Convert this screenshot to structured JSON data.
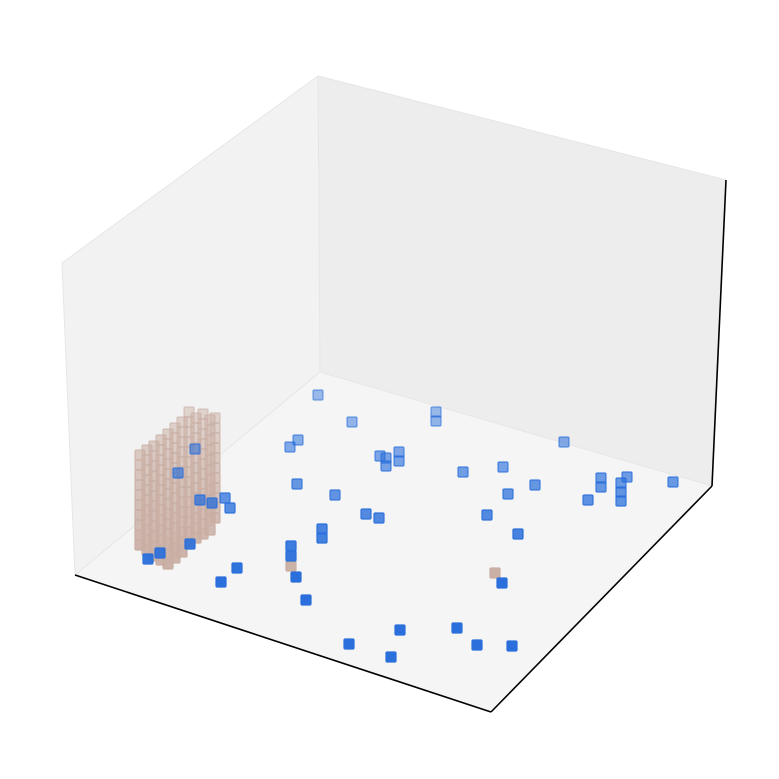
{
  "chart_data": {
    "type": "scatter",
    "projection": "3d",
    "axes_visible": false,
    "grid": false,
    "pane_colors": {
      "left": "#f2f2f2",
      "back": "#ededed",
      "floor": "#f5f5f5"
    },
    "series": [
      {
        "color": "#c9aea3",
        "marker": "square",
        "points_xy": [
          [
            140,
            455
          ],
          [
            140,
            465
          ],
          [
            140,
            475
          ],
          [
            140,
            485
          ],
          [
            140,
            495
          ],
          [
            140,
            505
          ],
          [
            140,
            515
          ],
          [
            140,
            525
          ],
          [
            140,
            535
          ],
          [
            140,
            545
          ],
          [
            147,
            450
          ],
          [
            147,
            460
          ],
          [
            147,
            470
          ],
          [
            147,
            480
          ],
          [
            147,
            490
          ],
          [
            147,
            500
          ],
          [
            147,
            510
          ],
          [
            147,
            520
          ],
          [
            147,
            530
          ],
          [
            147,
            540
          ],
          [
            147,
            550
          ],
          [
            154,
            446
          ],
          [
            154,
            456
          ],
          [
            154,
            466
          ],
          [
            154,
            476
          ],
          [
            154,
            486
          ],
          [
            154,
            496
          ],
          [
            154,
            506
          ],
          [
            154,
            516
          ],
          [
            154,
            526
          ],
          [
            154,
            536
          ],
          [
            154,
            546
          ],
          [
            154,
            556
          ],
          [
            161,
            440
          ],
          [
            161,
            450
          ],
          [
            161,
            460
          ],
          [
            161,
            470
          ],
          [
            161,
            480
          ],
          [
            161,
            490
          ],
          [
            161,
            500
          ],
          [
            161,
            510
          ],
          [
            161,
            520
          ],
          [
            161,
            530
          ],
          [
            161,
            540
          ],
          [
            161,
            550
          ],
          [
            161,
            560
          ],
          [
            168,
            434
          ],
          [
            168,
            444
          ],
          [
            168,
            454
          ],
          [
            168,
            464
          ],
          [
            168,
            474
          ],
          [
            168,
            484
          ],
          [
            168,
            494
          ],
          [
            168,
            504
          ],
          [
            168,
            514
          ],
          [
            168,
            524
          ],
          [
            168,
            534
          ],
          [
            168,
            544
          ],
          [
            168,
            554
          ],
          [
            168,
            564
          ],
          [
            175,
            428
          ],
          [
            175,
            438
          ],
          [
            175,
            448
          ],
          [
            175,
            458
          ],
          [
            175,
            468
          ],
          [
            175,
            478
          ],
          [
            175,
            488
          ],
          [
            175,
            498
          ],
          [
            175,
            508
          ],
          [
            175,
            518
          ],
          [
            175,
            528
          ],
          [
            175,
            538
          ],
          [
            175,
            548
          ],
          [
            175,
            558
          ],
          [
            182,
            422
          ],
          [
            182,
            432
          ],
          [
            182,
            442
          ],
          [
            182,
            452
          ],
          [
            182,
            462
          ],
          [
            182,
            472
          ],
          [
            182,
            482
          ],
          [
            182,
            492
          ],
          [
            182,
            502
          ],
          [
            182,
            512
          ],
          [
            182,
            522
          ],
          [
            182,
            532
          ],
          [
            182,
            542
          ],
          [
            182,
            552
          ],
          [
            189,
            412
          ],
          [
            189,
            422
          ],
          [
            189,
            432
          ],
          [
            189,
            442
          ],
          [
            189,
            452
          ],
          [
            189,
            462
          ],
          [
            189,
            472
          ],
          [
            189,
            482
          ],
          [
            189,
            492
          ],
          [
            189,
            502
          ],
          [
            189,
            512
          ],
          [
            189,
            522
          ],
          [
            189,
            532
          ],
          [
            189,
            542
          ],
          [
            196,
            418
          ],
          [
            196,
            428
          ],
          [
            196,
            438
          ],
          [
            196,
            448
          ],
          [
            196,
            458
          ],
          [
            196,
            468
          ],
          [
            196,
            478
          ],
          [
            196,
            488
          ],
          [
            196,
            498
          ],
          [
            196,
            508
          ],
          [
            196,
            518
          ],
          [
            196,
            528
          ],
          [
            196,
            538
          ],
          [
            203,
            414
          ],
          [
            203,
            424
          ],
          [
            203,
            434
          ],
          [
            203,
            444
          ],
          [
            203,
            454
          ],
          [
            203,
            464
          ],
          [
            203,
            474
          ],
          [
            203,
            484
          ],
          [
            203,
            494
          ],
          [
            203,
            504
          ],
          [
            203,
            514
          ],
          [
            203,
            524
          ],
          [
            203,
            534
          ],
          [
            210,
            420
          ],
          [
            210,
            430
          ],
          [
            210,
            440
          ],
          [
            210,
            450
          ],
          [
            210,
            460
          ],
          [
            210,
            470
          ],
          [
            210,
            480
          ],
          [
            210,
            490
          ],
          [
            210,
            500
          ],
          [
            210,
            510
          ],
          [
            210,
            520
          ],
          [
            210,
            530
          ],
          [
            215,
            418
          ],
          [
            215,
            428
          ],
          [
            215,
            438
          ],
          [
            215,
            448
          ],
          [
            215,
            458
          ],
          [
            215,
            468
          ],
          [
            215,
            478
          ],
          [
            215,
            488
          ],
          [
            215,
            498
          ],
          [
            215,
            508
          ],
          [
            215,
            518
          ],
          [
            291,
            566
          ],
          [
            495,
            573
          ]
        ]
      },
      {
        "color": "#2a6fdb",
        "marker": "square",
        "points_xy": [
          [
            318,
            395
          ],
          [
            352,
            422
          ],
          [
            436,
            412
          ],
          [
            436,
            421
          ],
          [
            298,
            440
          ],
          [
            290,
            447
          ],
          [
            380,
            456
          ],
          [
            386,
            458
          ],
          [
            386,
            466
          ],
          [
            399,
            452
          ],
          [
            399,
            461
          ],
          [
            564,
            442
          ],
          [
            463,
            472
          ],
          [
            503,
            467
          ],
          [
            297,
            484
          ],
          [
            335,
            495
          ],
          [
            508,
            494
          ],
          [
            535,
            485
          ],
          [
            601,
            478
          ],
          [
            601,
            487
          ],
          [
            627,
            477
          ],
          [
            621,
            483
          ],
          [
            621,
            492
          ],
          [
            621,
            501
          ],
          [
            588,
            500
          ],
          [
            673,
            482
          ],
          [
            366,
            514
          ],
          [
            379,
            518
          ],
          [
            487,
            515
          ],
          [
            518,
            534
          ],
          [
            322,
            529
          ],
          [
            322,
            538
          ],
          [
            291,
            546
          ],
          [
            291,
            556
          ],
          [
            296,
            577
          ],
          [
            306,
            600
          ],
          [
            195,
            449
          ],
          [
            178,
            473
          ],
          [
            200,
            500
          ],
          [
            212,
            503
          ],
          [
            225,
            498
          ],
          [
            230,
            508
          ],
          [
            190,
            544
          ],
          [
            160,
            553
          ],
          [
            148,
            559
          ],
          [
            237,
            568
          ],
          [
            221,
            582
          ],
          [
            502,
            583
          ],
          [
            400,
            630
          ],
          [
            457,
            628
          ],
          [
            477,
            645
          ],
          [
            512,
            646
          ],
          [
            349,
            644
          ],
          [
            391,
            657
          ]
        ]
      }
    ]
  }
}
